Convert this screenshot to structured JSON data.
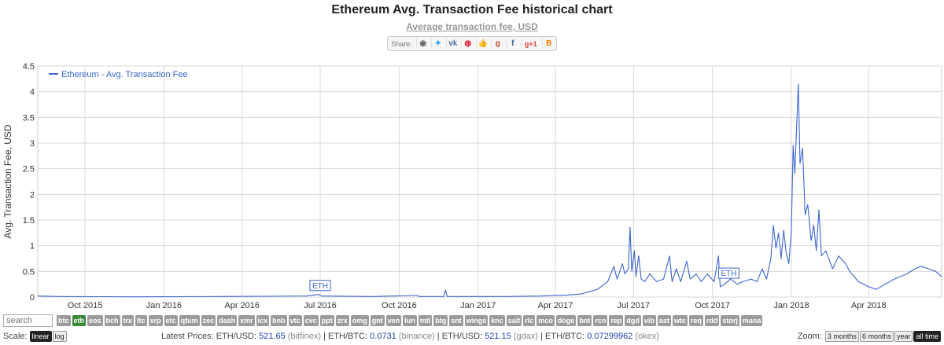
{
  "title": "Ethereum Avg. Transaction Fee historical chart",
  "subtitle": "Average transaction fee, USD",
  "share": {
    "label": "Share:",
    "buttons": [
      {
        "name": "share-reddit-icon",
        "glyph": "◉",
        "color": "#666"
      },
      {
        "name": "share-twitter-icon",
        "glyph": "✦",
        "color": "#1da1f2"
      },
      {
        "name": "share-vk-icon",
        "glyph": "vk",
        "color": "#4a76a8"
      },
      {
        "name": "share-weibo-icon",
        "glyph": "◍",
        "color": "#e6162d"
      },
      {
        "name": "share-like-icon",
        "glyph": "👍",
        "color": "#4267b2"
      },
      {
        "name": "share-google-icon",
        "glyph": "g",
        "color": "#db4437"
      },
      {
        "name": "share-facebook-icon",
        "glyph": "f",
        "color": "#3b5998"
      },
      {
        "name": "share-gplus-icon",
        "glyph": "g+1",
        "color": "#db4437"
      },
      {
        "name": "share-blogger-icon",
        "glyph": "B",
        "color": "#f57d00"
      }
    ]
  },
  "chart_data": {
    "type": "line",
    "ylabel": "Avg. Transaction Fee, USD",
    "ylim": [
      0,
      4.5
    ],
    "yticks": [
      "0",
      "0.5",
      "1",
      "1.5",
      "2",
      "2.5",
      "3",
      "3.5",
      "4",
      "4.5"
    ],
    "xlim": [
      "2015-08-07",
      "2018-06-25"
    ],
    "xticks": [
      {
        "date": "2015-10-01",
        "label": "Oct 2015"
      },
      {
        "date": "2016-01-01",
        "label": "Jan 2016"
      },
      {
        "date": "2016-04-01",
        "label": "Apr 2016"
      },
      {
        "date": "2016-07-01",
        "label": "Jul 2016"
      },
      {
        "date": "2016-10-01",
        "label": "Oct 2016"
      },
      {
        "date": "2017-01-01",
        "label": "Jan 2017"
      },
      {
        "date": "2017-04-01",
        "label": "Apr 2017"
      },
      {
        "date": "2017-07-01",
        "label": "Jul 2017"
      },
      {
        "date": "2017-10-01",
        "label": "Oct 2017"
      },
      {
        "date": "2018-01-01",
        "label": "Jan 2018"
      },
      {
        "date": "2018-04-01",
        "label": "Apr 2018"
      }
    ],
    "grid": true,
    "legend": "top-left",
    "color": "#3a66cc",
    "series": [
      {
        "name": "Ethereum - Avg. Transaction Fee",
        "points": [
          [
            "2015-08-07",
            0.02
          ],
          [
            "2015-09-01",
            0.01
          ],
          [
            "2015-12-01",
            0.005
          ],
          [
            "2016-03-01",
            0.01
          ],
          [
            "2016-06-15",
            0.02
          ],
          [
            "2016-06-29",
            0.05
          ],
          [
            "2016-07-03",
            0.02
          ],
          [
            "2016-09-01",
            0.01
          ],
          [
            "2016-10-20",
            0.03
          ],
          [
            "2016-10-26",
            0.01
          ],
          [
            "2016-11-22",
            0.01
          ],
          [
            "2016-11-24",
            0.14
          ],
          [
            "2016-11-26",
            0.01
          ],
          [
            "2017-02-01",
            0.01
          ],
          [
            "2017-03-15",
            0.02
          ],
          [
            "2017-04-15",
            0.04
          ],
          [
            "2017-05-01",
            0.06
          ],
          [
            "2017-05-20",
            0.15
          ],
          [
            "2017-06-01",
            0.3
          ],
          [
            "2017-06-08",
            0.6
          ],
          [
            "2017-06-12",
            0.35
          ],
          [
            "2017-06-18",
            0.65
          ],
          [
            "2017-06-21",
            0.45
          ],
          [
            "2017-06-25",
            0.55
          ],
          [
            "2017-06-27",
            1.36
          ],
          [
            "2017-06-29",
            0.5
          ],
          [
            "2017-07-02",
            0.9
          ],
          [
            "2017-07-04",
            0.4
          ],
          [
            "2017-07-07",
            0.8
          ],
          [
            "2017-07-10",
            0.35
          ],
          [
            "2017-07-14",
            0.3
          ],
          [
            "2017-07-20",
            0.45
          ],
          [
            "2017-07-28",
            0.3
          ],
          [
            "2017-08-05",
            0.35
          ],
          [
            "2017-08-12",
            0.8
          ],
          [
            "2017-08-15",
            0.3
          ],
          [
            "2017-08-20",
            0.55
          ],
          [
            "2017-08-25",
            0.3
          ],
          [
            "2017-09-01",
            0.7
          ],
          [
            "2017-09-05",
            0.35
          ],
          [
            "2017-09-12",
            0.45
          ],
          [
            "2017-09-18",
            0.3
          ],
          [
            "2017-09-25",
            0.45
          ],
          [
            "2017-10-03",
            0.3
          ],
          [
            "2017-10-08",
            0.8
          ],
          [
            "2017-10-10",
            0.2
          ],
          [
            "2017-10-15",
            0.25
          ],
          [
            "2017-10-22",
            0.35
          ],
          [
            "2017-10-30",
            0.25
          ],
          [
            "2017-11-05",
            0.3
          ],
          [
            "2017-11-15",
            0.35
          ],
          [
            "2017-11-22",
            0.3
          ],
          [
            "2017-11-28",
            0.55
          ],
          [
            "2017-12-03",
            0.35
          ],
          [
            "2017-12-08",
            0.75
          ],
          [
            "2017-12-11",
            1.4
          ],
          [
            "2017-12-14",
            0.95
          ],
          [
            "2017-12-17",
            1.25
          ],
          [
            "2017-12-20",
            0.75
          ],
          [
            "2017-12-23",
            1.3
          ],
          [
            "2017-12-26",
            0.85
          ],
          [
            "2017-12-29",
            0.65
          ],
          [
            "2018-01-01",
            1.3
          ],
          [
            "2018-01-03",
            2.95
          ],
          [
            "2018-01-05",
            2.4
          ],
          [
            "2018-01-07",
            3.3
          ],
          [
            "2018-01-09",
            4.15
          ],
          [
            "2018-01-11",
            2.6
          ],
          [
            "2018-01-14",
            2.9
          ],
          [
            "2018-01-17",
            1.6
          ],
          [
            "2018-01-20",
            1.8
          ],
          [
            "2018-01-24",
            1.1
          ],
          [
            "2018-01-27",
            1.4
          ],
          [
            "2018-01-30",
            0.9
          ],
          [
            "2018-02-02",
            1.7
          ],
          [
            "2018-02-05",
            0.8
          ],
          [
            "2018-02-10",
            0.9
          ],
          [
            "2018-02-18",
            0.55
          ],
          [
            "2018-02-25",
            0.8
          ],
          [
            "2018-03-05",
            0.65
          ],
          [
            "2018-03-10",
            0.5
          ],
          [
            "2018-03-20",
            0.3
          ],
          [
            "2018-04-01",
            0.2
          ],
          [
            "2018-04-10",
            0.15
          ],
          [
            "2018-04-20",
            0.25
          ],
          [
            "2018-05-01",
            0.35
          ],
          [
            "2018-05-15",
            0.45
          ],
          [
            "2018-05-25",
            0.55
          ],
          [
            "2018-06-01",
            0.6
          ],
          [
            "2018-06-10",
            0.55
          ],
          [
            "2018-06-18",
            0.5
          ],
          [
            "2018-06-25",
            0.4
          ]
        ]
      }
    ],
    "annotations": [
      {
        "label": "ETH",
        "date": "2016-07-01",
        "y": 0.08
      },
      {
        "label": "ETH",
        "date": "2017-10-20",
        "y": 0.32
      }
    ]
  },
  "search": {
    "placeholder": "search"
  },
  "coins": [
    "btc",
    "eth",
    "eos",
    "bch",
    "trx",
    "ltc",
    "xrp",
    "etc",
    "qtum",
    "zec",
    "dash",
    "xmr",
    "icx",
    "bnb",
    "vtc",
    "cvc",
    "ppt",
    "zrx",
    "omg",
    "gnt",
    "ven",
    "lun",
    "mtl",
    "btg",
    "snt",
    "wings",
    "knc",
    "salt",
    "rlc",
    "mco",
    "doge",
    "bnt",
    "rcn",
    "rep",
    "dgd",
    "vib",
    "ast",
    "wtc",
    "req",
    "rdd",
    "storj",
    "mana"
  ],
  "active_coin": "eth",
  "scale": {
    "label": "Scale:",
    "options": [
      "linear",
      "log"
    ],
    "active": "linear"
  },
  "prices": {
    "label": "Latest Prices:",
    "items": [
      {
        "pair": "ETH/USD:",
        "value": "521.65",
        "source": "(bitfinex)"
      },
      {
        "pair": "ETH/BTC:",
        "value": "0.0731",
        "source": "(binance)"
      },
      {
        "pair": "ETH/USD:",
        "value": "521.15",
        "source": "(gdax)"
      },
      {
        "pair": "ETH/BTC:",
        "value": "0.07299962",
        "source": "(okex)"
      }
    ]
  },
  "zoom": {
    "label": "Zoom:",
    "options": [
      "3 months",
      "6 months",
      "year",
      "all time"
    ],
    "active": "all time"
  }
}
